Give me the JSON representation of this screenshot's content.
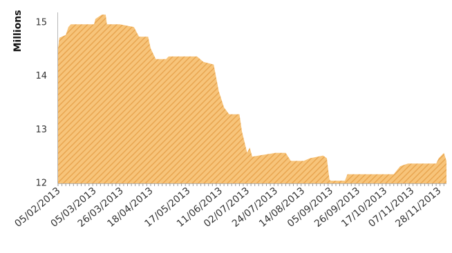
{
  "chart_data": {
    "type": "area",
    "title": "",
    "xlabel": "",
    "ylabel": "Millions",
    "ylim": [
      11.98,
      15.25
    ],
    "y_ticks": [
      12,
      13,
      14,
      15
    ],
    "grid": false,
    "legend": "none",
    "fill_color": "#f7c47a",
    "hatch_color": "#e8a550",
    "x_tick_labels": [
      "05/02/2013",
      "05/03/2013",
      "26/03/2013",
      "18/04/2013",
      "17/05/2013",
      "11/06/2013",
      "02/07/2013",
      "24/07/2013",
      "14/08/2013",
      "05/09/2013",
      "26/09/2013",
      "17/10/2013",
      "07/11/2013",
      "28/11/2013"
    ],
    "series": [
      {
        "points": [
          [
            "05/02/2013",
            14.5
          ],
          [
            "06/02/2013",
            14.7
          ],
          [
            "11/02/2013",
            14.75
          ],
          [
            "13/02/2013",
            14.9
          ],
          [
            "15/02/2013",
            14.95
          ],
          [
            "05/03/2013",
            14.95
          ],
          [
            "06/03/2013",
            15.05
          ],
          [
            "11/03/2013",
            15.13
          ],
          [
            "14/03/2013",
            15.13
          ],
          [
            "15/03/2013",
            14.95
          ],
          [
            "25/03/2013",
            14.95
          ],
          [
            "05/04/2013",
            14.9
          ],
          [
            "09/04/2013",
            14.72
          ],
          [
            "16/04/2013",
            14.72
          ],
          [
            "18/04/2013",
            14.5
          ],
          [
            "22/04/2013",
            14.3
          ],
          [
            "30/04/2013",
            14.3
          ],
          [
            "02/05/2013",
            14.35
          ],
          [
            "24/05/2013",
            14.35
          ],
          [
            "29/05/2013",
            14.25
          ],
          [
            "06/06/2013",
            14.2
          ],
          [
            "10/06/2013",
            13.7
          ],
          [
            "14/06/2013",
            13.4
          ],
          [
            "18/06/2013",
            13.27
          ],
          [
            "26/06/2013",
            13.27
          ],
          [
            "28/06/2013",
            12.95
          ],
          [
            "02/07/2013",
            12.55
          ],
          [
            "04/07/2013",
            12.65
          ],
          [
            "06/07/2013",
            12.48
          ],
          [
            "24/07/2013",
            12.55
          ],
          [
            "01/08/2013",
            12.55
          ],
          [
            "05/08/2013",
            12.4
          ],
          [
            "15/08/2013",
            12.4
          ],
          [
            "20/08/2013",
            12.45
          ],
          [
            "26/08/2013",
            12.48
          ],
          [
            "30/08/2013",
            12.5
          ],
          [
            "02/09/2013",
            12.45
          ],
          [
            "04/09/2013",
            12.05
          ],
          [
            "05/09/2013",
            12.03
          ],
          [
            "16/09/2013",
            12.03
          ],
          [
            "18/09/2013",
            12.15
          ],
          [
            "24/10/2013",
            12.15
          ],
          [
            "29/10/2013",
            12.3
          ],
          [
            "04/11/2013",
            12.35
          ],
          [
            "26/11/2013",
            12.35
          ],
          [
            "28/11/2013",
            12.45
          ],
          [
            "02/12/2013",
            12.55
          ],
          [
            "04/12/2013",
            12.4
          ]
        ]
      }
    ]
  }
}
